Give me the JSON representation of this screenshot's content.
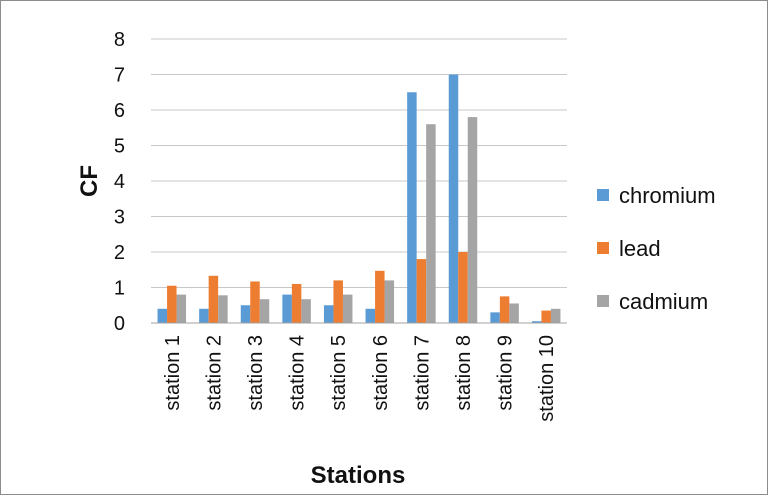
{
  "chart_data": {
    "type": "bar",
    "categories": [
      "station 1",
      "station 2",
      "station 3",
      "station 4",
      "station 5",
      "station 6",
      "station 7",
      "station 8",
      "station 9",
      "station 10"
    ],
    "series": [
      {
        "name": "chromium",
        "color": "#5b9bd5",
        "values": [
          0.4,
          0.4,
          0.5,
          0.8,
          0.5,
          0.4,
          6.5,
          7.0,
          0.3,
          0.05
        ]
      },
      {
        "name": "lead",
        "color": "#ed7d31",
        "values": [
          1.05,
          1.33,
          1.17,
          1.1,
          1.2,
          1.47,
          1.8,
          2.0,
          0.75,
          0.35
        ]
      },
      {
        "name": "cadmium",
        "color": "#a5a5a5",
        "values": [
          0.8,
          0.78,
          0.67,
          0.67,
          0.8,
          1.2,
          5.6,
          5.8,
          0.55,
          0.4
        ]
      }
    ],
    "xlabel": "Stations",
    "ylabel": "CF",
    "ylim": [
      0,
      8
    ],
    "yticks": [
      "0",
      "1",
      "2",
      "3",
      "4",
      "5",
      "6",
      "7",
      "8"
    ],
    "grid": true,
    "legend_position": "right"
  }
}
